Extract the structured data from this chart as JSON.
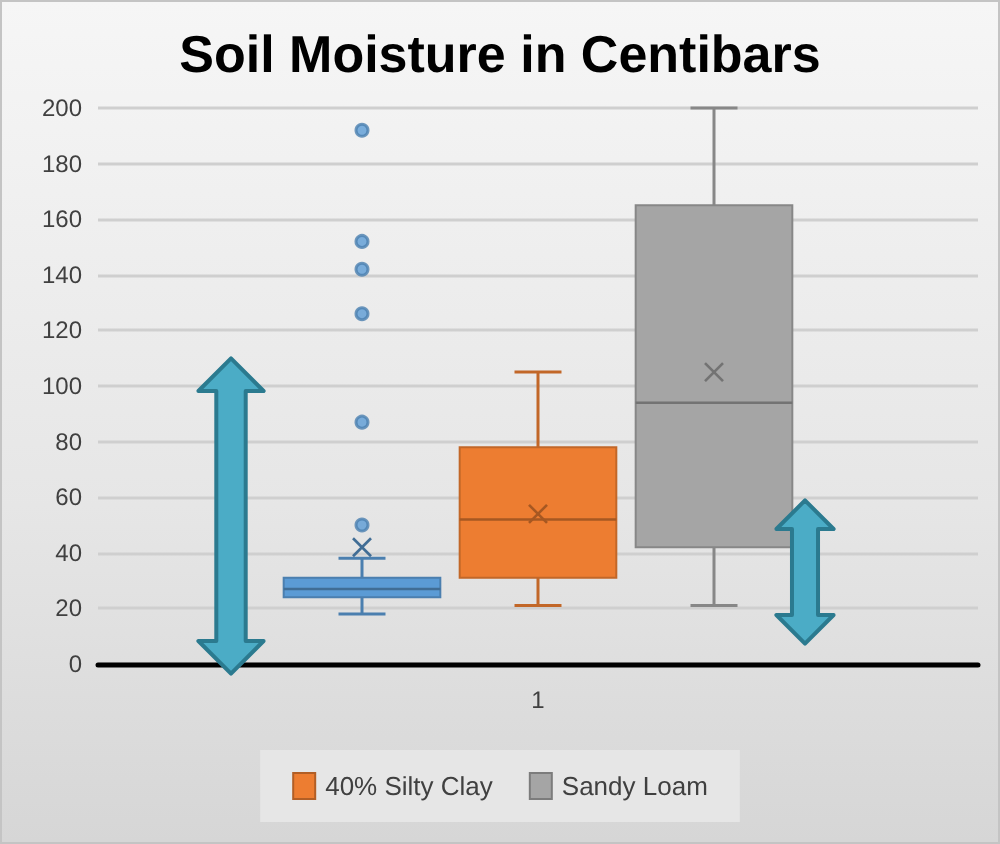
{
  "chart_data": {
    "type": "box",
    "title": "Soil Moisture in Centibars",
    "categories": [
      "1"
    ],
    "series": [
      {
        "color": "#5b9bd5",
        "boxes": [
          {
            "low": 18,
            "q1": 24,
            "median": 27,
            "q3": 31,
            "high": 38,
            "mean": 42,
            "outliers": [
              50,
              87,
              126,
              142,
              152,
              192
            ]
          }
        ]
      },
      {
        "name": "40% Silty Clay",
        "color": "#ed7d31",
        "boxes": [
          {
            "low": 21,
            "q1": 31,
            "median": 52,
            "q3": 78,
            "high": 105,
            "mean": 54
          }
        ]
      },
      {
        "name": "Sandy Loam",
        "color": "#a5a5a5",
        "boxes": [
          {
            "low": 21,
            "q1": 42,
            "median": 94,
            "q3": 165,
            "high": 200,
            "mean": 105
          }
        ]
      }
    ],
    "ylim": [
      0,
      200
    ],
    "yticks": [
      0,
      20,
      40,
      60,
      80,
      100,
      120,
      140,
      160,
      180,
      200
    ],
    "grid": "y",
    "legend": "bottom",
    "marker": "circle"
  }
}
